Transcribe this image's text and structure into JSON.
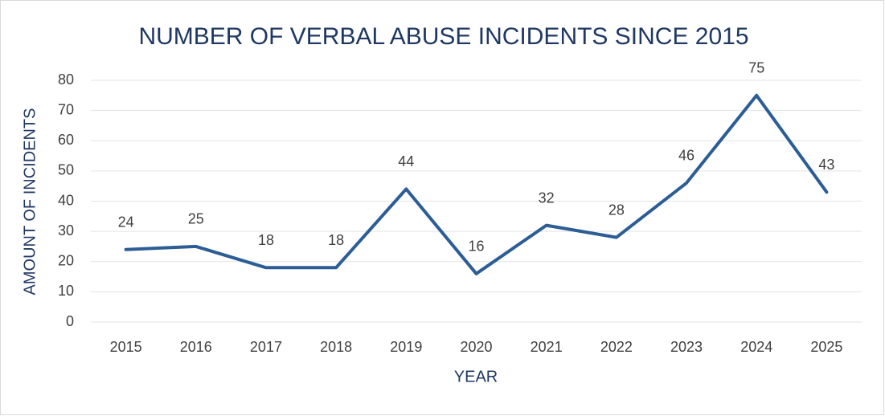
{
  "chart_data": {
    "type": "line",
    "title": "NUMBER OF VERBAL ABUSE INCIDENTS SINCE 2015",
    "x_label": "YEAR",
    "y_label": "AMOUNT OF INCIDENTS",
    "categories": [
      "2015",
      "2016",
      "2017",
      "2018",
      "2019",
      "2020",
      "2021",
      "2022",
      "2023",
      "2024",
      "2025"
    ],
    "values": [
      24,
      25,
      18,
      18,
      44,
      16,
      32,
      28,
      46,
      75,
      43
    ],
    "color": "#2c5d95",
    "ylim": [
      0,
      80
    ],
    "yticks": [
      0,
      10,
      20,
      30,
      40,
      50,
      60,
      70,
      80
    ],
    "grid": true
  }
}
